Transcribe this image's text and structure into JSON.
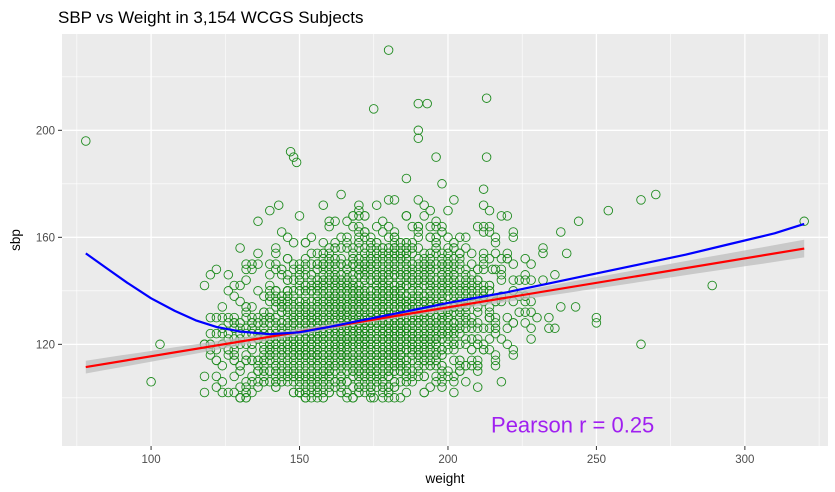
{
  "chart_data": {
    "type": "scatter",
    "title": "SBP vs Weight in 3,154 WCGS Subjects",
    "xlabel": "weight",
    "ylabel": "sbp",
    "xlim": [
      70,
      328
    ],
    "ylim": [
      82,
      236
    ],
    "x_ticks": [
      100,
      150,
      200,
      250,
      300
    ],
    "y_ticks": [
      120,
      160,
      200
    ],
    "grid": true,
    "legend": "none",
    "annotation": {
      "text": "Pearson r =  0.25",
      "x": 242,
      "y": 87,
      "color": "#a020f0"
    },
    "colors": {
      "panel": "#ebebeb",
      "grid_major": "#ffffff",
      "points": "#1f8b1f",
      "linear_fit": "#ff0000",
      "confidence_band": "#bdbdbd",
      "loess": "#0000ff"
    },
    "sample_size": 3154,
    "point_cloud": {
      "center": [
        172,
        128
      ],
      "spread": [
        21,
        14
      ],
      "correlation": 0.25
    },
    "outliers": [
      {
        "x": 78,
        "y": 196
      },
      {
        "x": 100,
        "y": 106
      },
      {
        "x": 103,
        "y": 120
      },
      {
        "x": 180,
        "y": 230
      },
      {
        "x": 175,
        "y": 208
      },
      {
        "x": 213,
        "y": 212
      },
      {
        "x": 190,
        "y": 210
      },
      {
        "x": 193,
        "y": 210
      },
      {
        "x": 190,
        "y": 200
      },
      {
        "x": 190,
        "y": 197
      },
      {
        "x": 147,
        "y": 192
      },
      {
        "x": 148,
        "y": 190
      },
      {
        "x": 149,
        "y": 188
      },
      {
        "x": 213,
        "y": 190
      },
      {
        "x": 196,
        "y": 190
      },
      {
        "x": 200,
        "y": 170
      },
      {
        "x": 232,
        "y": 154
      },
      {
        "x": 244,
        "y": 166
      },
      {
        "x": 254,
        "y": 170
      },
      {
        "x": 265,
        "y": 174
      },
      {
        "x": 270,
        "y": 176
      },
      {
        "x": 289,
        "y": 142
      },
      {
        "x": 320,
        "y": 166
      },
      {
        "x": 265,
        "y": 120
      },
      {
        "x": 243,
        "y": 134
      },
      {
        "x": 250,
        "y": 130
      },
      {
        "x": 250,
        "y": 128
      },
      {
        "x": 210,
        "y": 112
      },
      {
        "x": 222,
        "y": 118
      },
      {
        "x": 228,
        "y": 150
      },
      {
        "x": 215,
        "y": 148
      },
      {
        "x": 174,
        "y": 100
      },
      {
        "x": 175,
        "y": 100
      },
      {
        "x": 120,
        "y": 146
      },
      {
        "x": 130,
        "y": 156
      },
      {
        "x": 136,
        "y": 166
      },
      {
        "x": 140,
        "y": 170
      },
      {
        "x": 143,
        "y": 172
      },
      {
        "x": 236,
        "y": 126
      },
      {
        "x": 226,
        "y": 138
      }
    ],
    "linear_fit": {
      "x": [
        78,
        320
      ],
      "y": [
        111.5,
        155.8
      ]
    },
    "loess": {
      "x": [
        78,
        85,
        92,
        100,
        108,
        115,
        122,
        130,
        140,
        150,
        160,
        170,
        180,
        190,
        200,
        210,
        220,
        235,
        250,
        265,
        280,
        295,
        310,
        320
      ],
      "y": [
        154,
        148.5,
        143,
        137.2,
        132.5,
        129,
        126.5,
        124.8,
        123.8,
        124.5,
        126.5,
        128.8,
        131,
        133.2,
        135.5,
        137.5,
        139.5,
        143,
        146.5,
        150,
        153.5,
        157.5,
        161.5,
        165
      ]
    }
  }
}
